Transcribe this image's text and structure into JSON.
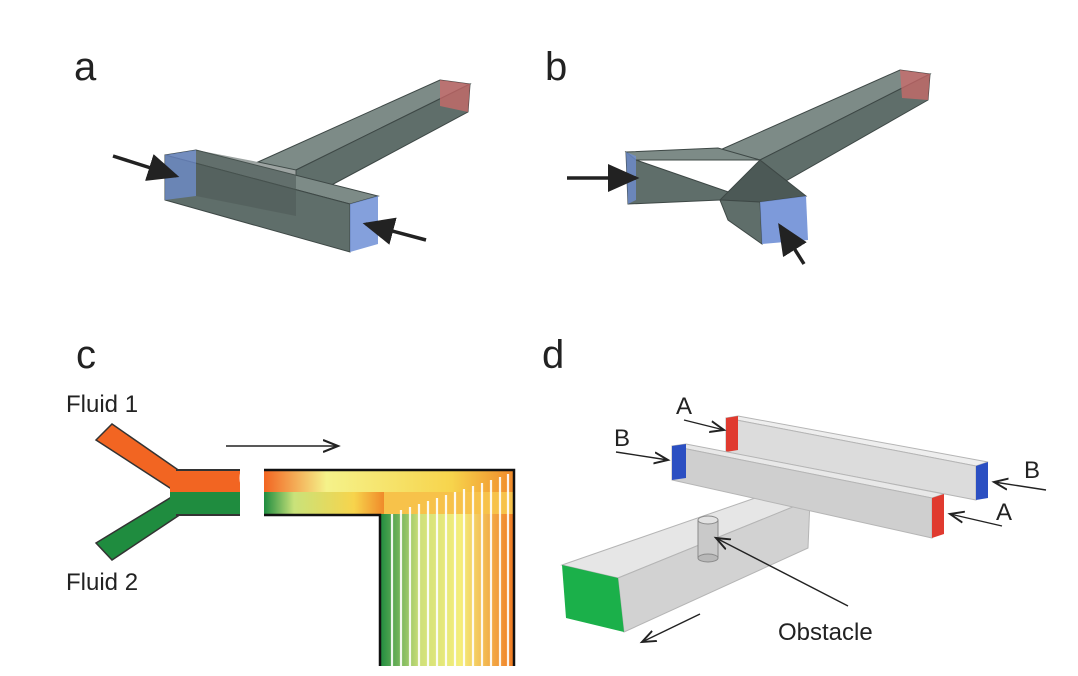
{
  "colors": {
    "channel_fill": "#5f6e6a",
    "channel_top": "#7d8b87",
    "channel_edge": "#3e4846",
    "inlet_blue": "#6f8fd6",
    "outlet_red": "#d46a6a",
    "fluid1": "#f26522",
    "fluid2": "#1f8c3f",
    "mix_yellow": "#f5f28a",
    "clear_channel": "#dcdcdc",
    "obstacle": "#c9c9c9",
    "outlet_green": "#1bb04a",
    "port_red": "#e03a2f",
    "port_blue": "#2b4fc2"
  },
  "panels": {
    "a": {
      "letter": "a"
    },
    "b": {
      "letter": "b"
    },
    "c": {
      "letter": "c",
      "fluid1_label": "Fluid 1",
      "fluid2_label": "Fluid 2"
    },
    "d": {
      "letter": "d",
      "label_a_top": "A",
      "label_b_left": "B",
      "label_b_right": "B",
      "label_a_right": "A",
      "obstacle_label": "Obstacle"
    }
  }
}
